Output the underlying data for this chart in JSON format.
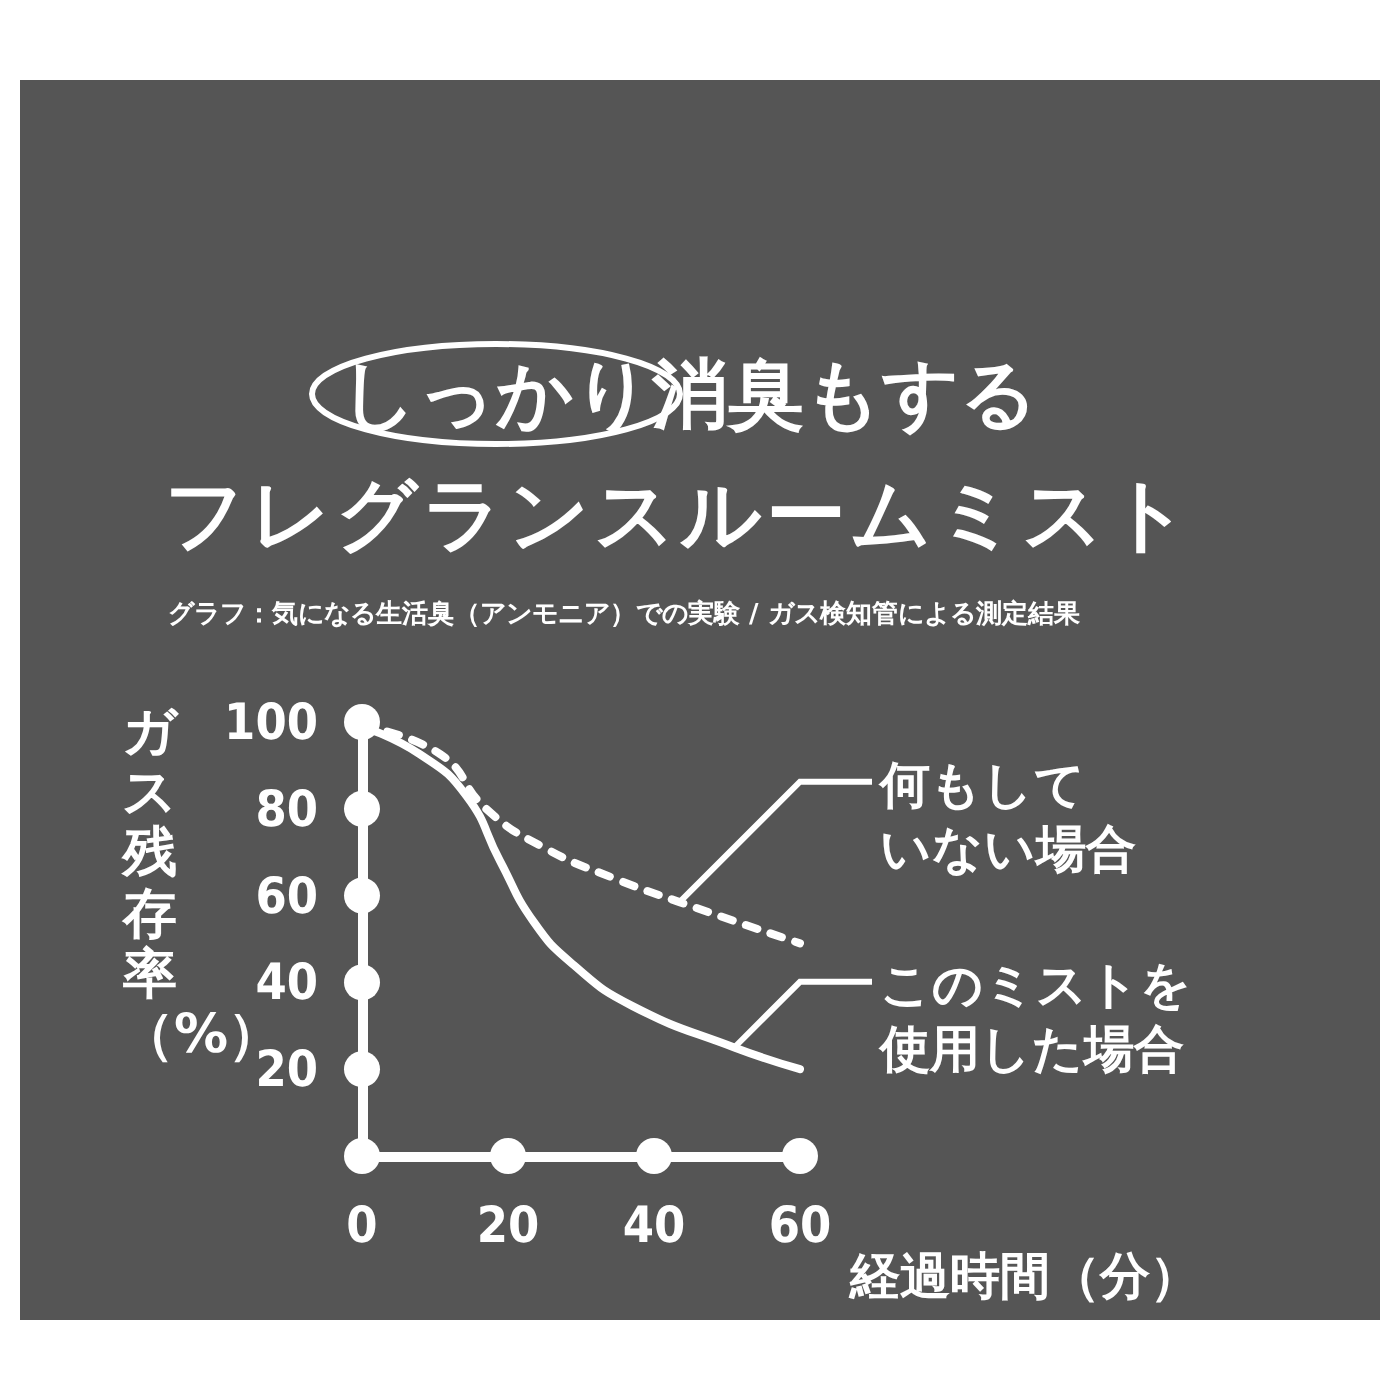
{
  "chart_data": {
    "type": "line",
    "title": "しっかり消臭もする",
    "subtitle": "フレグランスルームミスト",
    "annotations": [
      "グラフ：気になる生活臭（アンモニア）での実験 / ガス検知管による測定結果"
    ],
    "xlabel": "経過時間（分）",
    "ylabel": "ガス残存率（%）",
    "xlim": [
      0,
      60
    ],
    "xticks": [
      0,
      20,
      40,
      60
    ],
    "ylim": [
      0,
      100
    ],
    "yticks": [
      {
        "value": 0,
        "label": null
      },
      20,
      40,
      60,
      80,
      100
    ],
    "grid": false,
    "legend": "right",
    "series": [
      {
        "name": "何もしていない場合",
        "color": "#ffffff",
        "line_style": "dashed",
        "x": [
          0,
          10.7,
          17,
          25,
          34.5,
          43.5,
          60
        ],
        "values": [
          99,
          92.6,
          80,
          71,
          64,
          58.5,
          49
        ]
      },
      {
        "name": "このミストを使用した場合",
        "color": "#ffffff",
        "line_style": "solid",
        "x": [
          0,
          7.9,
          14.3,
          18.9,
          23.5,
          29,
          37,
          51,
          60
        ],
        "values": [
          99,
          92.6,
          83,
          68,
          54,
          44,
          34.6,
          25,
          20
        ]
      }
    ]
  }
}
